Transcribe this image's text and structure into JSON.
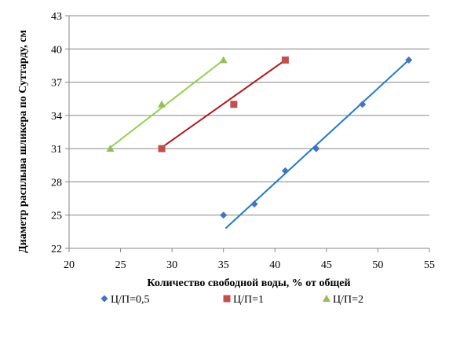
{
  "chart_data": {
    "type": "scatter",
    "xlabel": "Количество свободной воды, % от общей",
    "ylabel": "Диаметр расплыва шликера по Суттарду, см",
    "xlim": [
      20,
      55
    ],
    "ylim": [
      22,
      43
    ],
    "x_ticks": [
      20,
      25,
      30,
      35,
      40,
      45,
      50,
      55
    ],
    "y_ticks": [
      22,
      25,
      28,
      31,
      34,
      37,
      40,
      43
    ],
    "grid": "horizontal",
    "legend_position": "bottom",
    "series": [
      {
        "name": "Ц/П=0,5",
        "marker": "diamond",
        "marker_color": "#4472C4",
        "line_color": "#1F7BC8",
        "points": [
          [
            35,
            25
          ],
          [
            38,
            26
          ],
          [
            41,
            29
          ],
          [
            44,
            31
          ],
          [
            48.5,
            35
          ],
          [
            53,
            39
          ]
        ],
        "trendline": [
          [
            35.2,
            23.8
          ],
          [
            53,
            39
          ]
        ]
      },
      {
        "name": "Ц/П=1",
        "marker": "square",
        "marker_color": "#C0504D",
        "line_color": "#B0161C",
        "points": [
          [
            29,
            31
          ],
          [
            36,
            35
          ],
          [
            41,
            39
          ]
        ],
        "trendline": [
          [
            29,
            31.1
          ],
          [
            41,
            39
          ]
        ]
      },
      {
        "name": "Ц/П=2",
        "marker": "triangle",
        "marker_color": "#9BBB59",
        "line_color": "#92D050",
        "points": [
          [
            24,
            31
          ],
          [
            29,
            35
          ],
          [
            35,
            39
          ]
        ],
        "trendline": [
          [
            24,
            31.1
          ],
          [
            35,
            39
          ]
        ]
      }
    ]
  }
}
